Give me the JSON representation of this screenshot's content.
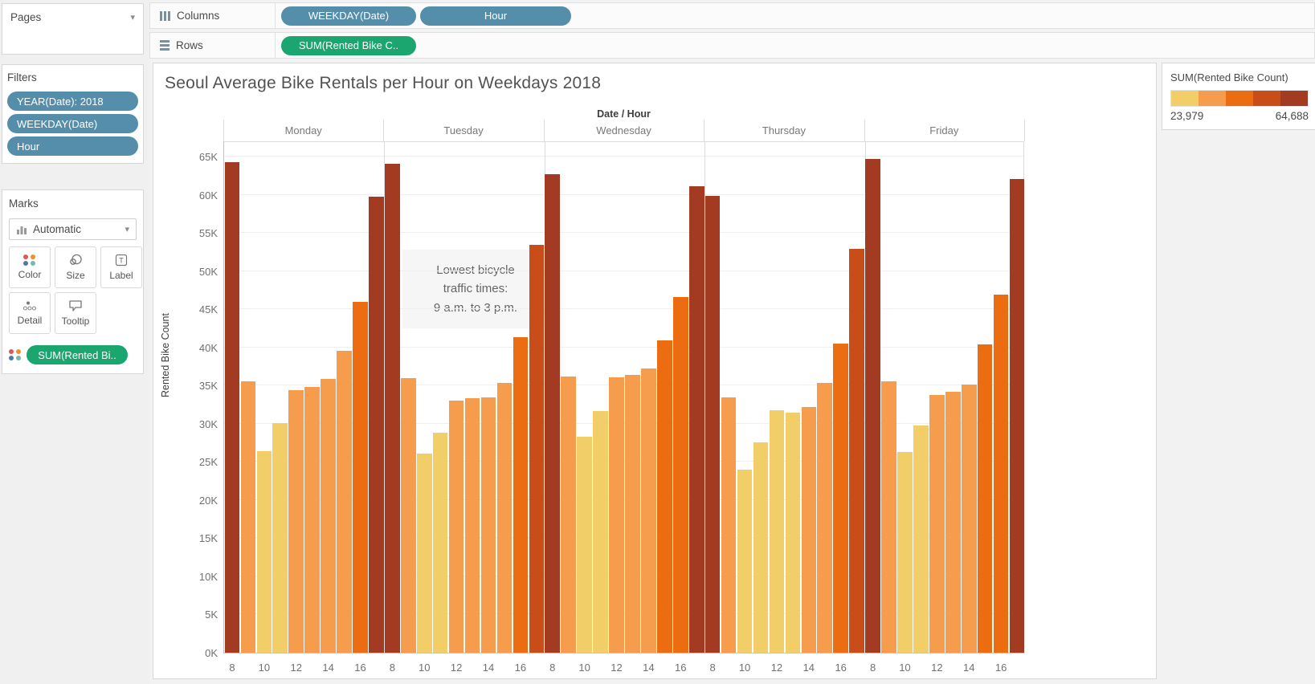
{
  "pages": {
    "title": "Pages"
  },
  "filters": {
    "title": "Filters",
    "pills": [
      "YEAR(Date): 2018",
      "WEEKDAY(Date)",
      "Hour"
    ]
  },
  "marks": {
    "title": "Marks",
    "mark_type": "Automatic",
    "buttons": [
      {
        "label": "Color",
        "icon": "color-icon"
      },
      {
        "label": "Size",
        "icon": "size-icon"
      },
      {
        "label": "Label",
        "icon": "label-icon"
      },
      {
        "label": "Detail",
        "icon": "detail-icon"
      },
      {
        "label": "Tooltip",
        "icon": "tooltip-icon"
      }
    ],
    "color_pill": "SUM(Rented Bi.."
  },
  "shelves": {
    "columns": {
      "label": "Columns",
      "pills": [
        "WEEKDAY(Date)",
        "Hour"
      ]
    },
    "rows": {
      "label": "Rows",
      "pills": [
        "SUM(Rented Bike C.."
      ]
    }
  },
  "legend": {
    "title": "SUM(Rented Bike Count)",
    "min_label": "23,979",
    "max_label": "64,688"
  },
  "colors": {
    "pill_blue": "#548eab",
    "pill_green": "#1ba56f",
    "palette": [
      "#f2ce68",
      "#f69d4d",
      "#eb6c11",
      "#c84d19",
      "#a23b22"
    ],
    "mark_color_dots": [
      "#e15759",
      "#f28e2b",
      "#4e79a7",
      "#76b7b2"
    ]
  },
  "chart_data": {
    "type": "bar",
    "title": "Seoul Average Bike Rentals per Hour on Weekdays 2018",
    "col_header": "Date / Hour",
    "ylabel": "Rented Bike Count",
    "ylim": [
      0,
      65000
    ],
    "ytick_step": 5000,
    "ytick_labels": [
      "0K",
      "5K",
      "10K",
      "15K",
      "20K",
      "25K",
      "30K",
      "35K",
      "40K",
      "45K",
      "50K",
      "55K",
      "60K",
      "65K"
    ],
    "hours": [
      8,
      9,
      10,
      11,
      12,
      13,
      14,
      15,
      16,
      17
    ],
    "xtick_hours": [
      8,
      10,
      12,
      14,
      16
    ],
    "categories": [
      "Monday",
      "Tuesday",
      "Wednesday",
      "Thursday",
      "Friday"
    ],
    "series": [
      {
        "name": "Monday",
        "values": [
          64300,
          35500,
          26400,
          30100,
          34400,
          34800,
          35900,
          39500,
          46000,
          59700
        ]
      },
      {
        "name": "Tuesday",
        "values": [
          64100,
          36000,
          26100,
          28800,
          33000,
          33300,
          33500,
          35300,
          41300,
          53400
        ]
      },
      {
        "name": "Wednesday",
        "values": [
          62700,
          36200,
          28300,
          31700,
          36100,
          36400,
          37200,
          40900,
          46600,
          61100
        ]
      },
      {
        "name": "Thursday",
        "values": [
          59800,
          33400,
          23979,
          27600,
          31800,
          31400,
          32200,
          35300,
          40500,
          52900
        ]
      },
      {
        "name": "Friday",
        "values": [
          64688,
          35500,
          26300,
          29800,
          33800,
          34200,
          35100,
          40400,
          46900,
          62100
        ]
      }
    ],
    "color_steps": {
      "min": 23979,
      "max": 64688,
      "n_steps": 5
    },
    "annotation": "Lowest bicycle\ntraffic times:\n9 a.m. to 3 p.m.",
    "legend_position": "top-right",
    "grid": true
  }
}
